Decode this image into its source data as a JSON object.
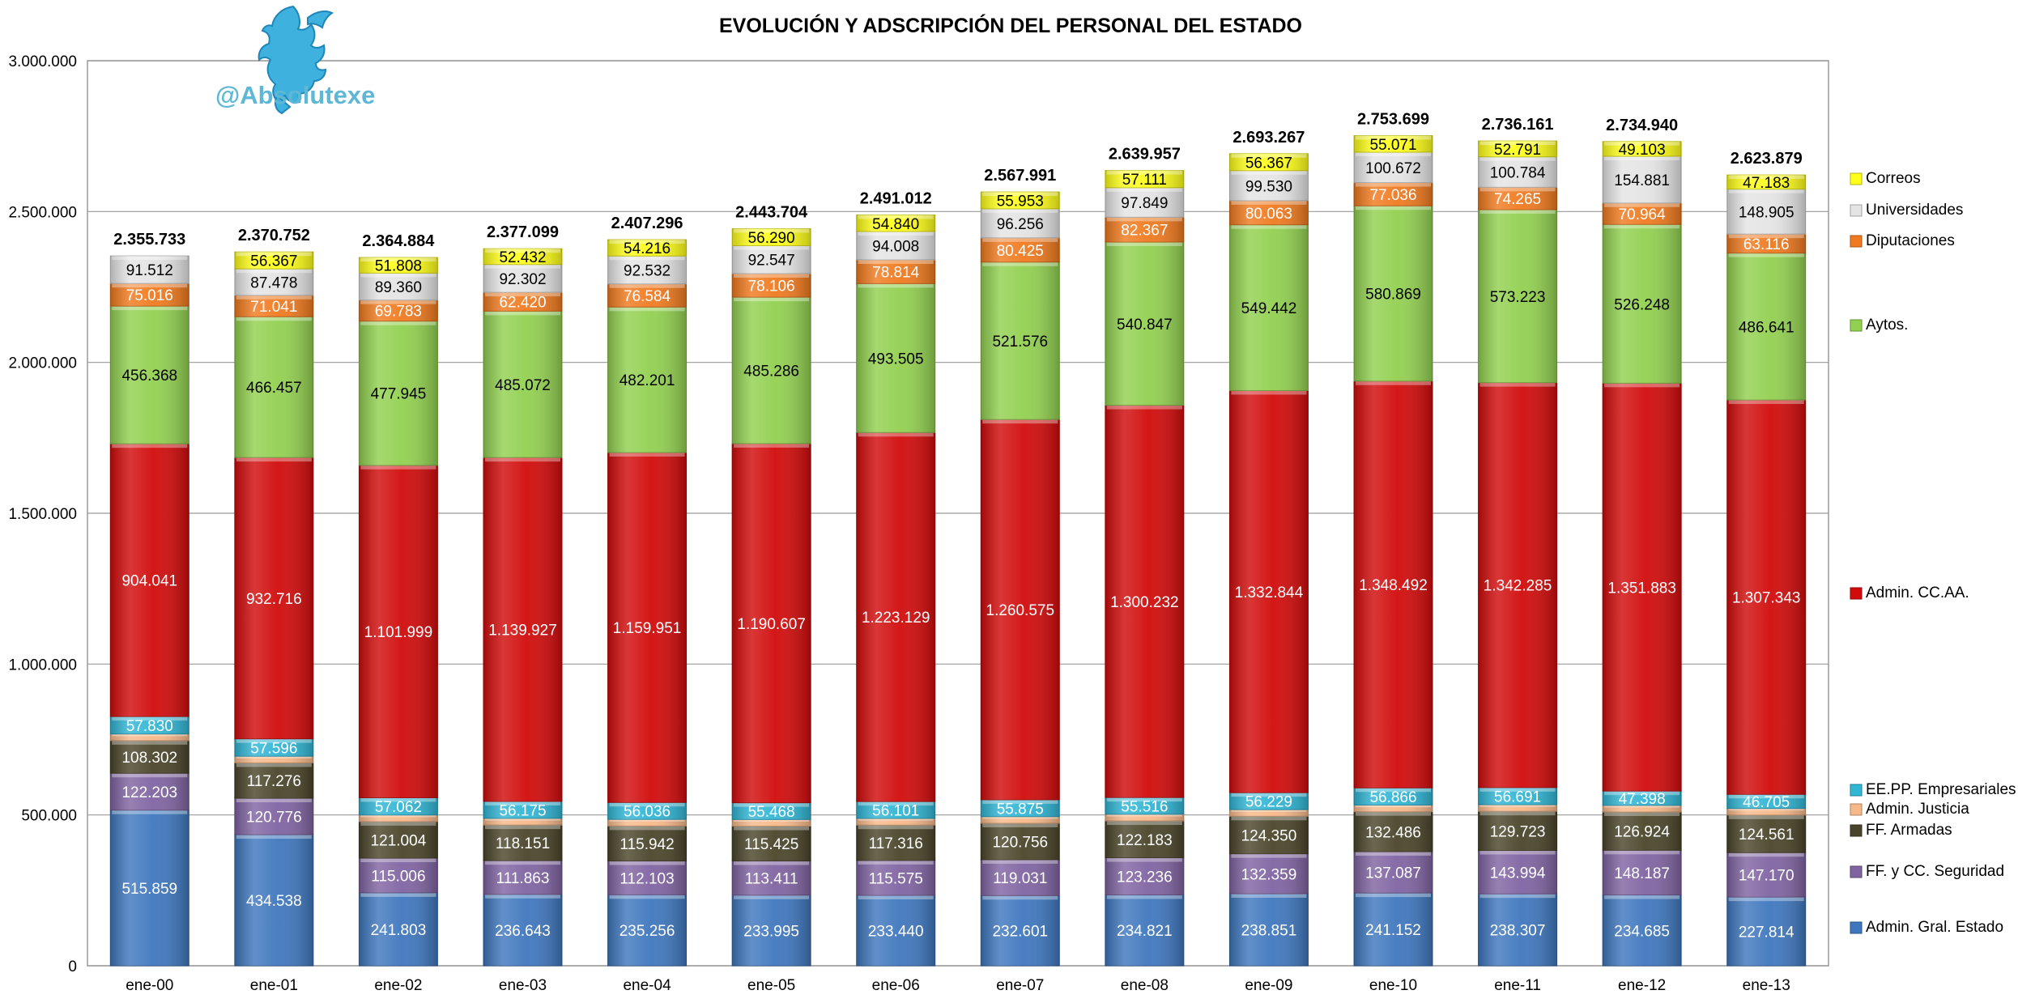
{
  "brand": {
    "handle": "@Absolutexe",
    "logo_icon": "griffin-logo-icon"
  },
  "chart_data": {
    "type": "bar",
    "stacked": true,
    "title": "EVOLUCIÓN Y ADSCRIPCIÓN DEL PERSONAL DEL ESTADO",
    "xlabel": "",
    "ylabel": "",
    "ylim": [
      0,
      3000000
    ],
    "yticks": [
      "0",
      "500.000",
      "1.000.000",
      "1.500.000",
      "2.000.000",
      "2.500.000",
      "3.000.000"
    ],
    "grid": true,
    "legend_position": "right",
    "categories": [
      "ene-00",
      "ene-01",
      "ene-02",
      "ene-03",
      "ene-04",
      "ene-05",
      "ene-06",
      "ene-07",
      "ene-08",
      "ene-09",
      "ene-10",
      "ene-11",
      "ene-12",
      "ene-13"
    ],
    "totals": [
      "2.355.733",
      "2.370.752",
      "2.364.884",
      "2.377.099",
      "2.407.296",
      "2.443.704",
      "2.491.012",
      "2.567.991",
      "2.639.957",
      "2.693.267",
      "2.753.699",
      "2.736.161",
      "2.734.940",
      "2.623.879"
    ],
    "series": [
      {
        "name": "Admin. Gral. Estado",
        "color": "#3f77be",
        "values": [
          515859,
          434538,
          241803,
          236643,
          235256,
          233995,
          233440,
          232601,
          234821,
          238851,
          241152,
          238307,
          234685,
          227814
        ],
        "labels": [
          "515.859",
          "434.538",
          "241.803",
          "236.643",
          "235.256",
          "233.995",
          "233.440",
          "232.601",
          "234.821",
          "238.851",
          "241.152",
          "238.307",
          "234.685",
          "227.814"
        ]
      },
      {
        "name": "FF. y CC. Seguridad",
        "color": "#8064a2",
        "values": [
          122203,
          120776,
          115006,
          111863,
          112103,
          113411,
          115575,
          119031,
          123236,
          132359,
          137087,
          143994,
          148187,
          147170
        ],
        "labels": [
          "122.203",
          "120.776",
          "115.006",
          "111.863",
          "112.103",
          "113.411",
          "115.575",
          "119.031",
          "123.236",
          "132.359",
          "137.087",
          "143.994",
          "148.187",
          "147.170"
        ]
      },
      {
        "name": "FF. Armadas",
        "color": "#4a452a",
        "values": [
          108302,
          117276,
          121004,
          118151,
          115942,
          115425,
          117316,
          120756,
          122183,
          124350,
          132486,
          129723,
          126924,
          124561
        ],
        "labels": [
          "108.302",
          "117.276",
          "121.004",
          "118.151",
          "115.942",
          "115.425",
          "117.316",
          "120.756",
          "122.183",
          "124.350",
          "132.486",
          "129.723",
          "126.924",
          "124.561"
        ]
      },
      {
        "name": "Admin. Justicia",
        "color": "#f8b98a",
        "values": [
          22000,
          22000,
          22000,
          22000,
          22000,
          22000,
          22000,
          22000,
          22000,
          22000,
          22000,
          22000,
          22000,
          22000
        ],
        "labels": [
          "",
          "",
          "",
          "",
          "",
          "",
          "",
          "",
          "",
          "",
          "",
          "",
          "",
          ""
        ]
      },
      {
        "name": "EE.PP. Empresariales",
        "color": "#31b6d5",
        "values": [
          57830,
          57596,
          57062,
          56175,
          56036,
          55468,
          56101,
          55875,
          55516,
          56229,
          56866,
          56691,
          47398,
          46705
        ],
        "labels": [
          "57.830",
          "57.596",
          "57.062",
          "56.175",
          "56.036",
          "55.468",
          "56.101",
          "55.875",
          "55.516",
          "56.229",
          "56.866",
          "56.691",
          "47.398",
          "46.705"
        ]
      },
      {
        "name": "Admin. CC.AA.",
        "color": "#d10b0b",
        "values": [
          904041,
          932716,
          1101999,
          1139927,
          1159951,
          1190607,
          1223129,
          1260575,
          1300232,
          1332844,
          1348492,
          1342285,
          1351883,
          1307343
        ],
        "labels": [
          "904.041",
          "932.716",
          "1.101.999",
          "1.139.927",
          "1.159.951",
          "1.190.607",
          "1.223.129",
          "1.260.575",
          "1.300.232",
          "1.332.844",
          "1.348.492",
          "1.342.285",
          "1.351.883",
          "1.307.343"
        ]
      },
      {
        "name": "Aytos.",
        "color": "#92d050",
        "values": [
          456368,
          466457,
          477945,
          485072,
          482201,
          485286,
          493505,
          521576,
          540847,
          549442,
          580869,
          573223,
          526248,
          486641
        ],
        "labels": [
          "456.368",
          "466.457",
          "477.945",
          "485.072",
          "482.201",
          "485.286",
          "493.505",
          "521.576",
          "540.847",
          "549.442",
          "580.869",
          "573.223",
          "526.248",
          "486.641"
        ]
      },
      {
        "name": "Diputaciones",
        "color": "#f07a1f",
        "values": [
          75016,
          71041,
          69783,
          62420,
          76584,
          78106,
          78814,
          80425,
          82367,
          80063,
          77036,
          74265,
          70964,
          63116
        ],
        "labels": [
          "75.016",
          "71.041",
          "69.783",
          "62.420",
          "76.584",
          "78.106",
          "78.814",
          "80.425",
          "82.367",
          "80.063",
          "77.036",
          "74.265",
          "70.964",
          "63.116"
        ]
      },
      {
        "name": "Universidades",
        "color": "#e4e4e4",
        "values": [
          91512,
          87478,
          89360,
          92302,
          92532,
          92547,
          94008,
          96256,
          97849,
          99530,
          100672,
          100784,
          154881,
          148905
        ],
        "labels": [
          "91.512",
          "87.478",
          "89.360",
          "92.302",
          "92.532",
          "92.547",
          "94.008",
          "96.256",
          "97.849",
          "99.530",
          "100.672",
          "100.784",
          "154.881",
          "148.905"
        ]
      },
      {
        "name": "Correos",
        "color": "#ffff1a",
        "values": [
          0,
          56367,
          51808,
          52432,
          54216,
          56290,
          54840,
          55953,
          57111,
          56367,
          55071,
          52791,
          49103,
          47183
        ],
        "labels": [
          "",
          "56.367",
          "51.808",
          "52.432",
          "54.216",
          "56.290",
          "54.840",
          "55.953",
          "57.111",
          "56.367",
          "55.071",
          "52.791",
          "49.103",
          "47.183"
        ]
      }
    ]
  }
}
